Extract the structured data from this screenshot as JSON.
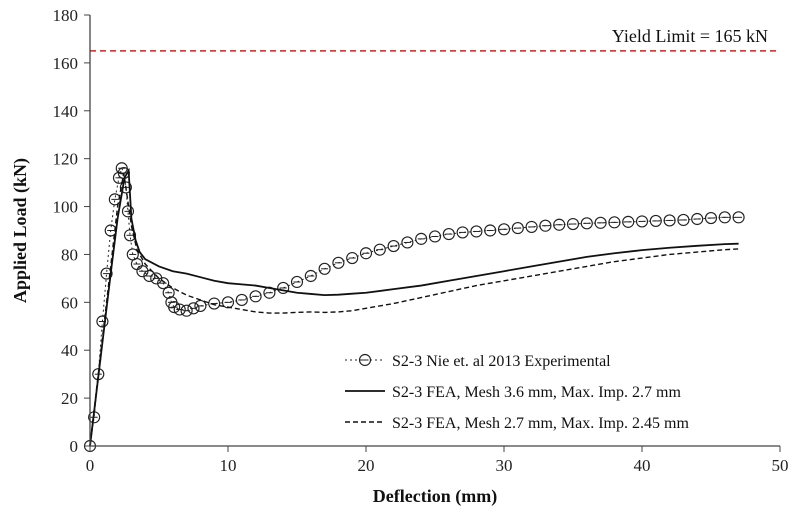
{
  "chart_data": {
    "type": "line",
    "title": "",
    "xlabel": "Deflection (mm)",
    "ylabel": "Applied Load (kN)",
    "xlim": [
      0,
      50
    ],
    "ylim": [
      0,
      180
    ],
    "xticks": [
      0,
      10,
      20,
      30,
      40,
      50
    ],
    "yticks": [
      0,
      20,
      40,
      60,
      80,
      100,
      120,
      140,
      160,
      180
    ],
    "grid": false,
    "legend_position": "bottom-right",
    "reference_line": {
      "value": 165,
      "label": "Yield Limit = 165 kN",
      "color": "#e11d1d",
      "style": "dashed"
    },
    "series": [
      {
        "name": "S2-3 Nie et. al 2013 Experimental",
        "style": "dotted-markers",
        "color": "#222222",
        "x": [
          0,
          0.3,
          0.6,
          0.9,
          1.2,
          1.5,
          1.8,
          2.1,
          2.3,
          2.45,
          2.6,
          2.75,
          2.9,
          3.1,
          3.4,
          3.8,
          4.3,
          4.8,
          5.3,
          5.7,
          5.9,
          6.1,
          6.5,
          7,
          7.5,
          8,
          9,
          10,
          11,
          12,
          13,
          14,
          15,
          16,
          17,
          18,
          19,
          20,
          21,
          22,
          23,
          24,
          25,
          26,
          27,
          28,
          29,
          30,
          31,
          32,
          33,
          34,
          35,
          36,
          37,
          38,
          39,
          40,
          41,
          42,
          43,
          44,
          45,
          46,
          47
        ],
        "y": [
          0,
          12,
          30,
          52,
          72,
          90,
          103,
          112,
          116,
          114,
          108,
          98,
          88,
          80,
          76,
          73,
          71,
          70,
          68,
          64,
          60,
          58,
          57,
          56.5,
          57.5,
          58.5,
          59.5,
          60,
          61,
          62.5,
          64,
          66,
          68.5,
          71,
          74,
          76.5,
          78.5,
          80.5,
          82,
          83.5,
          85,
          86.5,
          87.5,
          88.5,
          89.2,
          89.6,
          90,
          90.5,
          91,
          91.5,
          92,
          92.4,
          92.7,
          93,
          93.2,
          93.4,
          93.6,
          93.8,
          94,
          94.2,
          94.4,
          94.8,
          95.2,
          95.5,
          95.5
        ]
      },
      {
        "name": "S2-3 FEA, Mesh 3.6 mm, Max. Imp. 2.7 mm",
        "style": "solid",
        "color": "#111111",
        "x": [
          0,
          0.5,
          1,
          1.5,
          2,
          2.5,
          2.8,
          3,
          3.3,
          3.6,
          4,
          5,
          6,
          7,
          8,
          9,
          10,
          11,
          12,
          13,
          14,
          15,
          16,
          17,
          18,
          19,
          20,
          22,
          24,
          26,
          28,
          30,
          32,
          34,
          36,
          38,
          40,
          42,
          44,
          46,
          47
        ],
        "y": [
          0,
          24,
          48,
          72,
          95,
          112,
          115,
          95,
          86,
          81,
          78,
          75,
          73,
          72,
          70.5,
          69,
          68,
          67.5,
          67,
          66,
          65,
          64,
          63.5,
          63,
          63.2,
          63.6,
          64,
          65.5,
          67,
          69,
          71,
          73,
          75,
          77,
          79,
          80.5,
          81.8,
          82.8,
          83.6,
          84.3,
          84.5
        ]
      },
      {
        "name": "S2-3 FEA, Mesh 2.7 mm, Max. Imp. 2.45 mm",
        "style": "dashed",
        "color": "#111111",
        "x": [
          0,
          0.5,
          1,
          1.5,
          2,
          2.45,
          2.7,
          3,
          3.4,
          4,
          5,
          6,
          7,
          8,
          9,
          10,
          11,
          12,
          13,
          14,
          15,
          16,
          17,
          18,
          19,
          20,
          22,
          24,
          26,
          28,
          30,
          32,
          34,
          36,
          38,
          40,
          42,
          44,
          46,
          47
        ],
        "y": [
          0,
          25,
          50,
          75,
          100,
          114,
          104,
          92,
          82,
          76,
          70,
          66,
          63,
          61,
          59,
          58,
          57,
          56,
          55.5,
          55.5,
          55.8,
          56,
          55.8,
          56,
          56.5,
          57.5,
          59.5,
          62,
          64.5,
          67,
          69,
          71,
          73,
          75,
          77,
          78.5,
          80,
          81,
          82,
          82.3
        ]
      }
    ]
  }
}
